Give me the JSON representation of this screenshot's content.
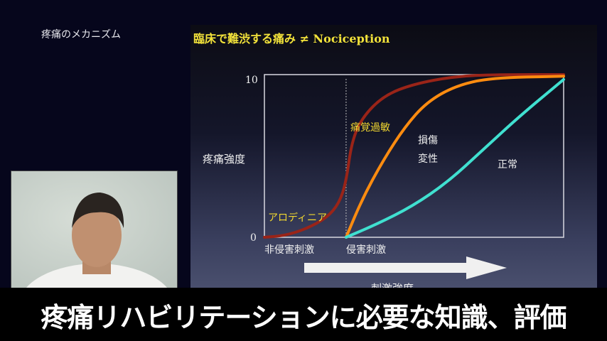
{
  "section_title": "疼痛のメカニズム",
  "slide": {
    "title": "臨床で難渋する痛み ≠ Nociception"
  },
  "chart_data": {
    "type": "line",
    "title": "臨床で難渋する痛み ≠ Nociception",
    "ylabel": "疼痛強度",
    "xlabel": "刺激強度",
    "ylim": [
      0,
      10
    ],
    "xlim": [
      0,
      10
    ],
    "y_ticks": [
      "0",
      "10"
    ],
    "x_category_labels": [
      "非侵害刺激",
      "侵害刺激"
    ],
    "threshold_x": 2.73,
    "grid": false,
    "series": [
      {
        "name": "痛覚過敏",
        "color": "#9a2418",
        "x": [
          0,
          0.67,
          1.38,
          2.09,
          2.5,
          2.73,
          2.92,
          3.28,
          3.99,
          4.94,
          6.37,
          7.8,
          10
        ],
        "y": [
          0,
          0.1,
          0.5,
          1.2,
          2.1,
          3.4,
          5.9,
          7.4,
          8.7,
          9.4,
          9.9,
          10,
          10
        ]
      },
      {
        "name": "損傷 変性",
        "color": "#ff8c10",
        "x": [
          2.73,
          3.28,
          3.99,
          4.7,
          5.42,
          6.37,
          7.55,
          10
        ],
        "y": [
          0,
          2.4,
          4.8,
          6.8,
          8.3,
          9.3,
          9.8,
          9.9
        ]
      },
      {
        "name": "正常",
        "color": "#40e0d0",
        "x": [
          2.73,
          3.75,
          4.94,
          6.13,
          7.32,
          8.5,
          10
        ],
        "y": [
          0,
          0.8,
          1.9,
          3.4,
          5.4,
          7.4,
          9.7
        ]
      }
    ],
    "annotations": [
      "痛覚過敏",
      "損傷",
      "変性",
      "正常",
      "アロディニア"
    ]
  },
  "caption": "疼痛リハビリテーションに必要な知識、評価"
}
